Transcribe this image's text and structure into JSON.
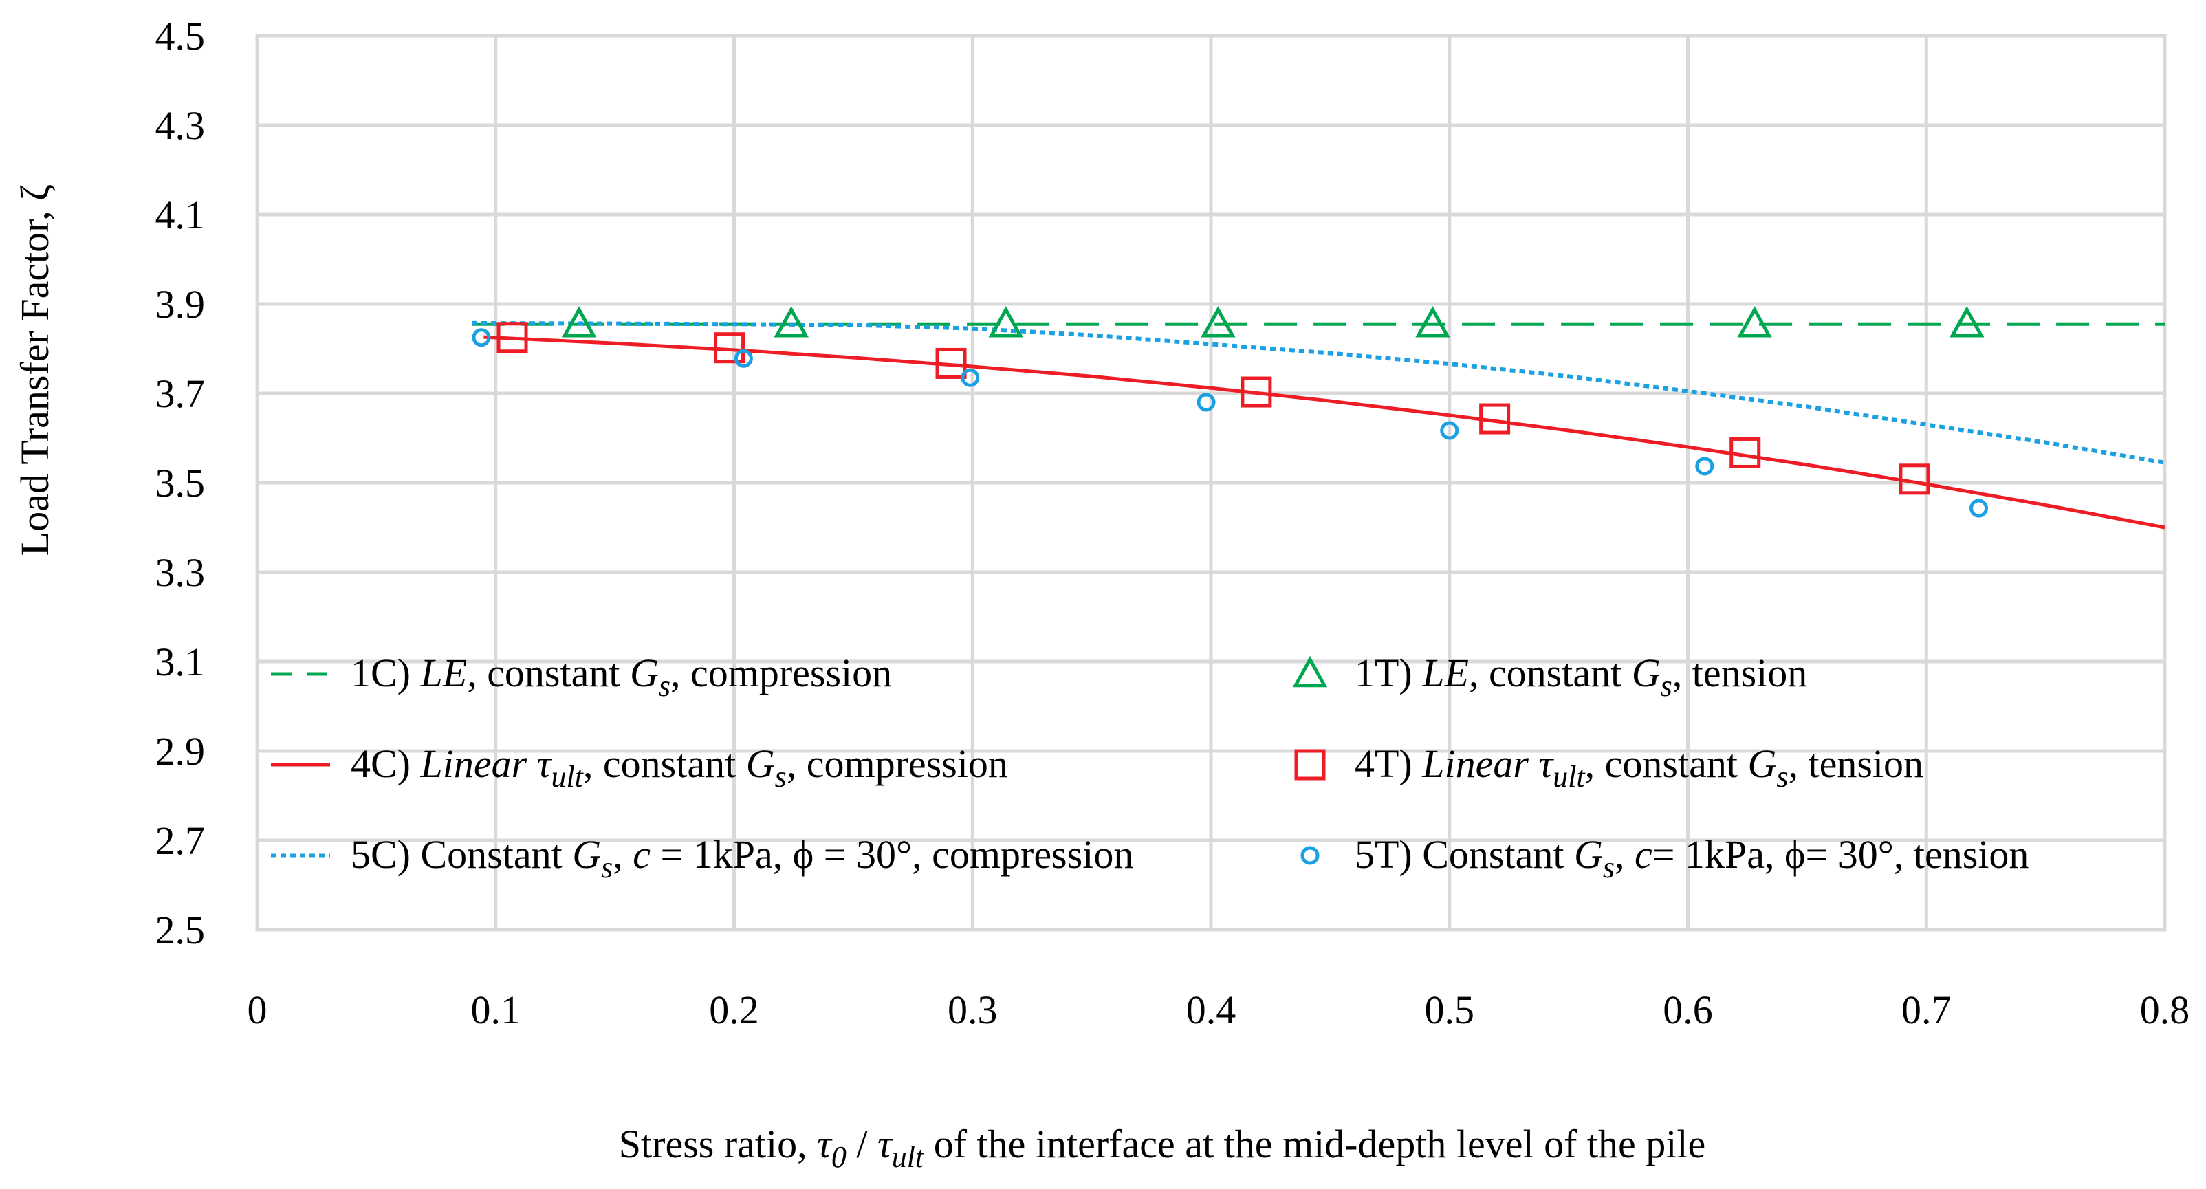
{
  "chart_data": {
    "type": "line",
    "xlabel_parts": [
      {
        "text": "Stress ratio, ",
        "italic": false,
        "sub": false
      },
      {
        "text": "τ",
        "italic": true,
        "sub": false
      },
      {
        "text": "0",
        "italic": true,
        "sub": true
      },
      {
        "text": " / ",
        "italic": false,
        "sub": false
      },
      {
        "text": "τ",
        "italic": true,
        "sub": false
      },
      {
        "text": "ult",
        "italic": true,
        "sub": true
      },
      {
        "text": " of the interface at the mid-depth level of the pile",
        "italic": false,
        "sub": false
      }
    ],
    "ylabel": "Load Transfer Factor, ζ",
    "xlim": [
      0,
      0.8
    ],
    "ylim": [
      2.5,
      4.5
    ],
    "x_ticks": [
      "0",
      "0.1",
      "0.2",
      "0.3",
      "0.4",
      "0.5",
      "0.6",
      "0.7",
      "0.8"
    ],
    "y_ticks": [
      "2.5",
      "2.7",
      "2.9",
      "3.1",
      "3.3",
      "3.5",
      "3.7",
      "3.9",
      "4.1",
      "4.3",
      "4.5"
    ],
    "grid": true,
    "legend_position": "inside-bottom, two columns",
    "series": [
      {
        "key": "1C",
        "kind": "line",
        "style": "dashed",
        "color": "#00A650",
        "x": [
          0.09,
          0.8
        ],
        "y": [
          3.855,
          3.855
        ],
        "legend": [
          {
            "text": "1C) ",
            "italic": false,
            "sub": false
          },
          {
            "text": "LE",
            "italic": true,
            "sub": false
          },
          {
            "text": ", constant ",
            "italic": false,
            "sub": false
          },
          {
            "text": "G",
            "italic": true,
            "sub": false
          },
          {
            "text": "s",
            "italic": true,
            "sub": true
          },
          {
            "text": ", compression",
            "italic": false,
            "sub": false
          }
        ]
      },
      {
        "key": "1T",
        "kind": "marker",
        "marker": "triangle",
        "color": "#00A650",
        "x": [
          0.135,
          0.224,
          0.314,
          0.403,
          0.493,
          0.628,
          0.717
        ],
        "y": [
          3.855,
          3.855,
          3.855,
          3.855,
          3.855,
          3.855,
          3.855
        ],
        "legend": [
          {
            "text": "1T) ",
            "italic": false,
            "sub": false
          },
          {
            "text": "LE",
            "italic": true,
            "sub": false
          },
          {
            "text": ", constant ",
            "italic": false,
            "sub": false
          },
          {
            "text": "G",
            "italic": true,
            "sub": false
          },
          {
            "text": "s",
            "italic": true,
            "sub": true
          },
          {
            "text": ", tension",
            "italic": false,
            "sub": false
          }
        ]
      },
      {
        "key": "4C",
        "kind": "line",
        "style": "solid",
        "color": "#EE1C25",
        "x": [
          0.095,
          0.15,
          0.2,
          0.25,
          0.3,
          0.35,
          0.4,
          0.45,
          0.5,
          0.55,
          0.6,
          0.65,
          0.7,
          0.75,
          0.8
        ],
        "y": [
          3.826,
          3.812,
          3.797,
          3.78,
          3.76,
          3.738,
          3.712,
          3.683,
          3.651,
          3.617,
          3.58,
          3.54,
          3.497,
          3.45,
          3.4
        ],
        "legend": [
          {
            "text": "4C) ",
            "italic": false,
            "sub": false
          },
          {
            "text": "Linear ",
            "italic": true,
            "sub": false
          },
          {
            "text": "τ",
            "italic": true,
            "sub": false
          },
          {
            "text": "ult",
            "italic": true,
            "sub": true
          },
          {
            "text": ", constant ",
            "italic": false,
            "sub": false
          },
          {
            "text": "G",
            "italic": true,
            "sub": false
          },
          {
            "text": "s",
            "italic": true,
            "sub": true
          },
          {
            "text": ", compression",
            "italic": false,
            "sub": false
          }
        ]
      },
      {
        "key": "4T",
        "kind": "marker",
        "marker": "square",
        "color": "#EE1C25",
        "x": [
          0.107,
          0.198,
          0.291,
          0.419,
          0.519,
          0.624,
          0.695
        ],
        "y": [
          3.825,
          3.802,
          3.767,
          3.703,
          3.643,
          3.567,
          3.508
        ],
        "legend": [
          {
            "text": "4T) ",
            "italic": false,
            "sub": false
          },
          {
            "text": "Linear ",
            "italic": true,
            "sub": false
          },
          {
            "text": "τ",
            "italic": true,
            "sub": false
          },
          {
            "text": "ult",
            "italic": true,
            "sub": true
          },
          {
            "text": ", constant ",
            "italic": false,
            "sub": false
          },
          {
            "text": "G",
            "italic": true,
            "sub": false
          },
          {
            "text": "s",
            "italic": true,
            "sub": true
          },
          {
            "text": ", tension",
            "italic": false,
            "sub": false
          }
        ]
      },
      {
        "key": "5C",
        "kind": "line",
        "style": "dotted",
        "color": "#1BA1E2",
        "x": [
          0.09,
          0.15,
          0.2,
          0.25,
          0.3,
          0.35,
          0.4,
          0.45,
          0.5,
          0.55,
          0.6,
          0.65,
          0.7,
          0.75,
          0.8
        ],
        "y": [
          3.857,
          3.856,
          3.855,
          3.853,
          3.845,
          3.83,
          3.81,
          3.79,
          3.766,
          3.738,
          3.705,
          3.67,
          3.63,
          3.59,
          3.545
        ],
        "legend": [
          {
            "text": "5C) Constant ",
            "italic": false,
            "sub": false
          },
          {
            "text": "G",
            "italic": true,
            "sub": false
          },
          {
            "text": "s",
            "italic": true,
            "sub": true
          },
          {
            "text": ", ",
            "italic": false,
            "sub": false
          },
          {
            "text": "c",
            "italic": true,
            "sub": false
          },
          {
            "text": " = 1kPa, ϕ = 30°, compression",
            "italic": false,
            "sub": false
          }
        ]
      },
      {
        "key": "5T",
        "kind": "marker",
        "marker": "circle",
        "color": "#1BA1E2",
        "x": [
          0.094,
          0.204,
          0.299,
          0.398,
          0.5,
          0.607,
          0.722
        ],
        "y": [
          3.825,
          3.778,
          3.735,
          3.68,
          3.617,
          3.537,
          3.443
        ],
        "legend": [
          {
            "text": "5T) Constant ",
            "italic": false,
            "sub": false
          },
          {
            "text": "G",
            "italic": true,
            "sub": false
          },
          {
            "text": "s",
            "italic": true,
            "sub": true
          },
          {
            "text": ", ",
            "italic": false,
            "sub": false
          },
          {
            "text": "c",
            "italic": true,
            "sub": false
          },
          {
            "text": "= 1kPa, ϕ= 30°, tension",
            "italic": false,
            "sub": false
          }
        ]
      }
    ]
  }
}
